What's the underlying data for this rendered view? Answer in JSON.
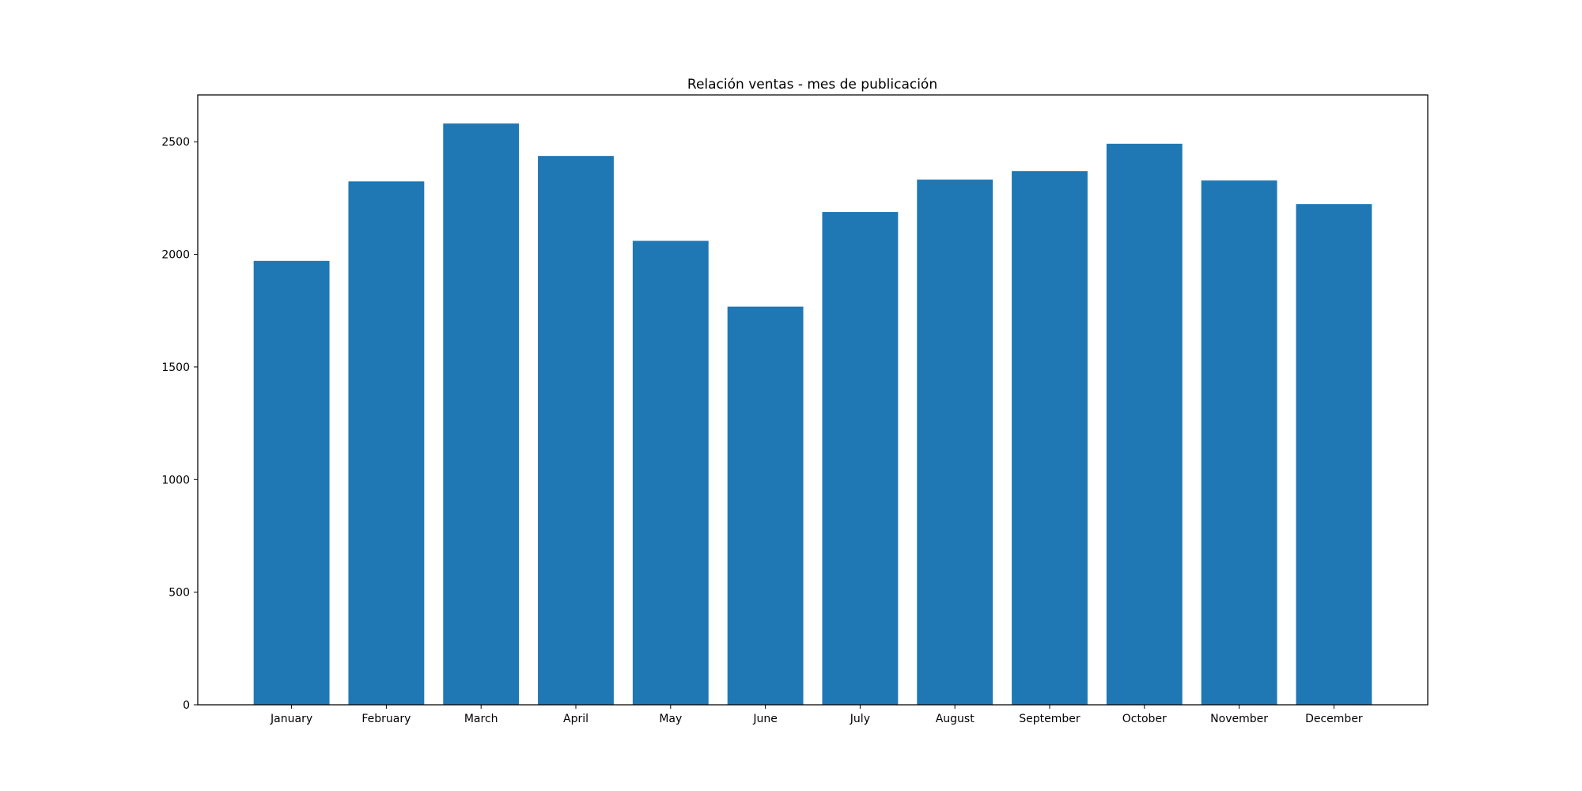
{
  "chart_data": {
    "type": "bar",
    "title": "Relación ventas - mes de publicación",
    "xlabel": "",
    "ylabel": "",
    "categories": [
      "January",
      "February",
      "March",
      "April",
      "May",
      "June",
      "July",
      "August",
      "September",
      "October",
      "November",
      "December"
    ],
    "values": [
      1971,
      2324,
      2581,
      2437,
      2060,
      1768,
      2188,
      2332,
      2370,
      2491,
      2328,
      2223
    ],
    "ylim": [
      0,
      2708
    ],
    "yticks": [
      0,
      500,
      1000,
      1500,
      2000,
      2500
    ],
    "bar_color": "#1f77b4",
    "grid": false,
    "legend": "none"
  }
}
